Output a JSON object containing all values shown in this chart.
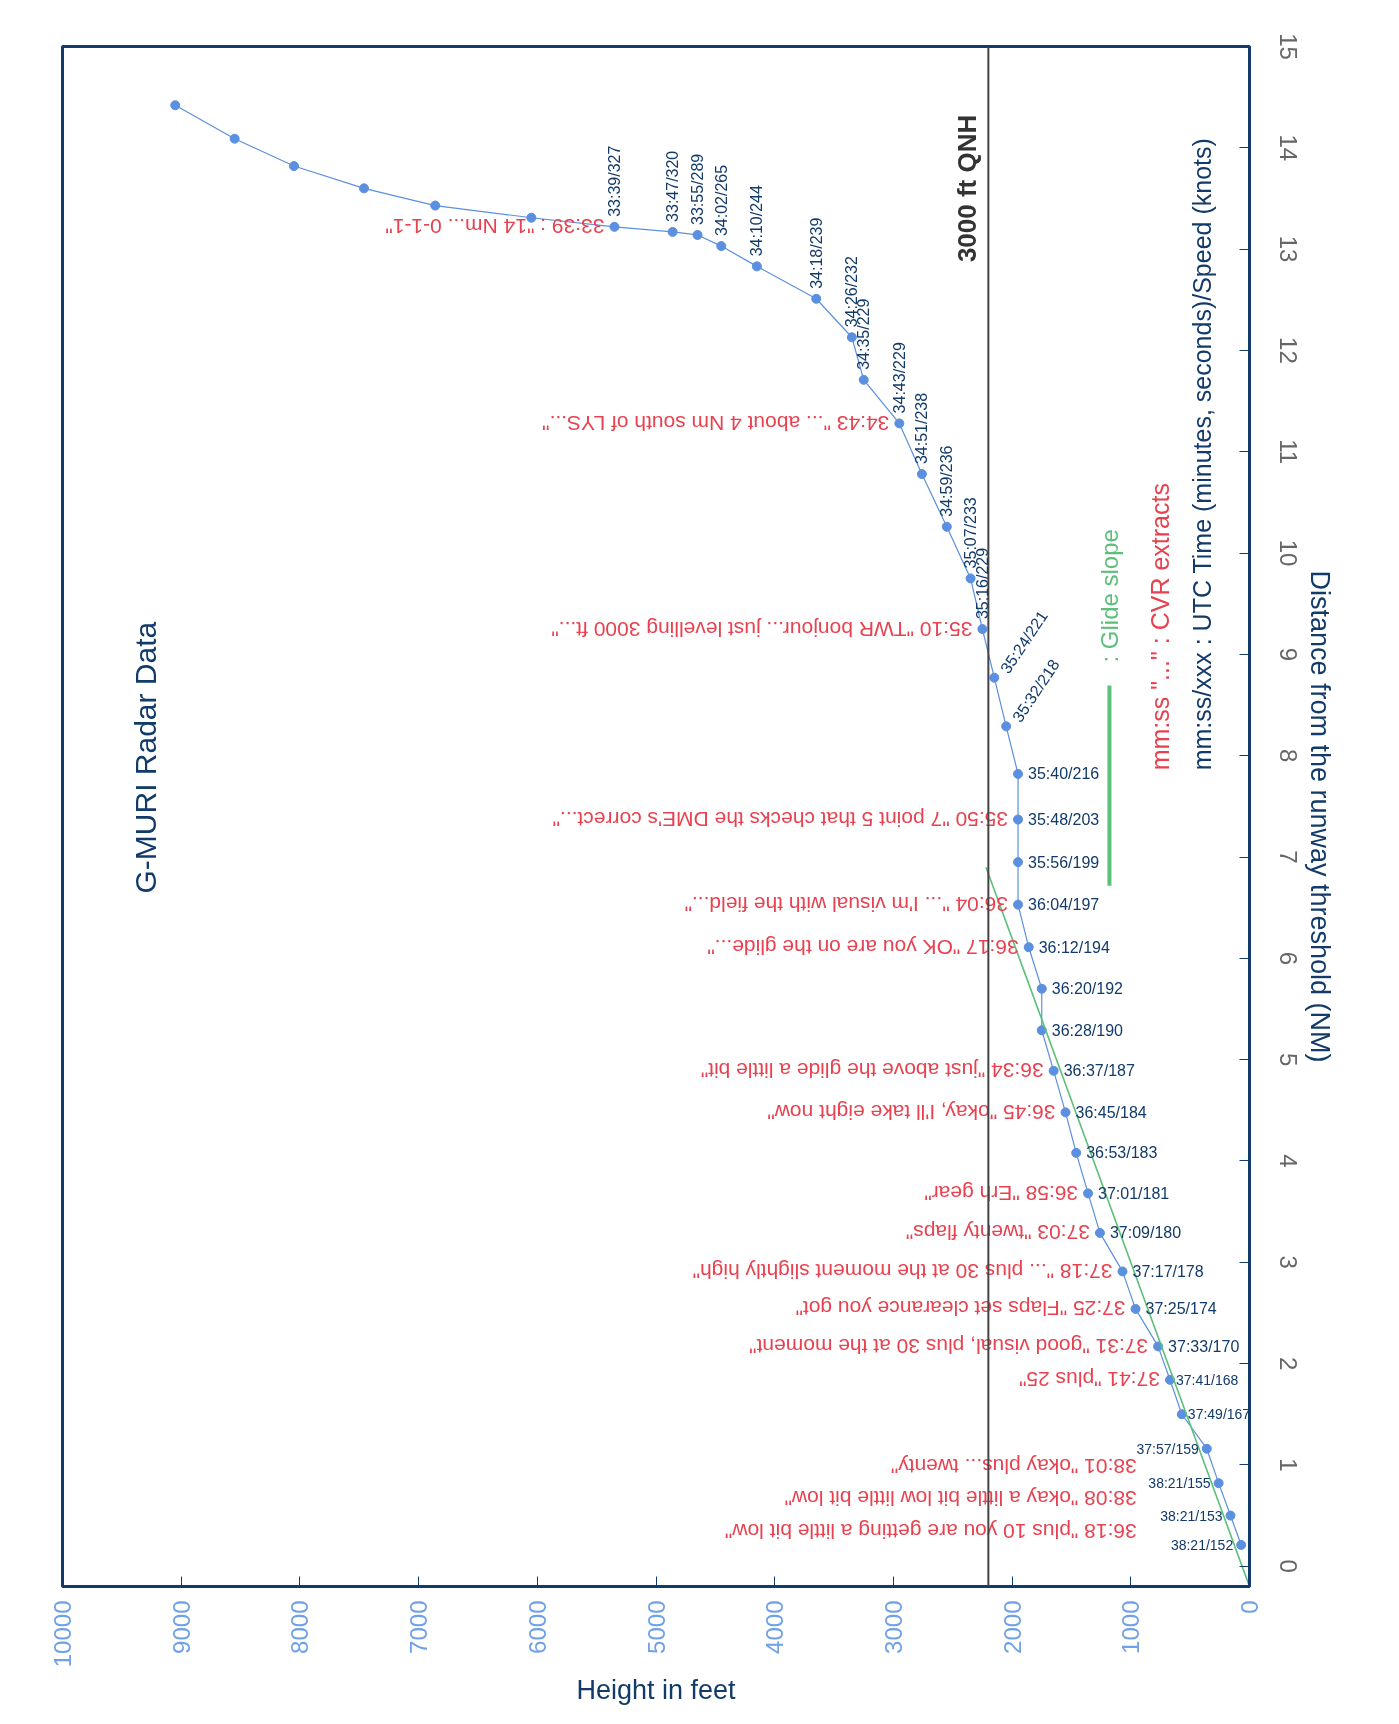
{
  "chart_data": {
    "type": "line",
    "title": "G-MURI Radar Data",
    "xlabel": "Height in feet",
    "ylabel": "Distance from the runway threshold (NM)",
    "xlim": [
      10000,
      0
    ],
    "xticks": [
      0,
      1000,
      2000,
      3000,
      4000,
      5000,
      6000,
      7000,
      8000,
      9000,
      10000
    ],
    "ylim": [
      -0.2,
      15
    ],
    "yticks": [
      0,
      1,
      2,
      3,
      4,
      5,
      6,
      7,
      8,
      9,
      10,
      11,
      12,
      13,
      14,
      15
    ],
    "grid": false,
    "marker": "circle",
    "legend": "right",
    "series": [
      {
        "color": "#5b8fe0",
        "x": [
          9050,
          8550,
          8050,
          7460,
          6860,
          6050,
          5350,
          4860,
          4650,
          4450,
          4150,
          3650,
          3350,
          3250,
          2950,
          2760,
          2550,
          2350,
          2250,
          2150,
          2050,
          1950,
          1950,
          1950,
          1950,
          1860,
          1750,
          1750,
          1650,
          1550,
          1460,
          1360,
          1260,
          1070,
          960,
          770,
          670,
          570,
          360,
          260,
          160,
          70
        ],
        "values": [
          14.42,
          14.09,
          13.82,
          13.6,
          13.43,
          13.31,
          13.22,
          13.17,
          13.14,
          13.03,
          12.83,
          12.51,
          12.13,
          11.71,
          11.28,
          10.78,
          10.26,
          9.75,
          9.25,
          8.77,
          8.29,
          7.82,
          7.37,
          6.95,
          6.53,
          6.11,
          5.7,
          5.29,
          4.89,
          4.48,
          4.08,
          3.68,
          3.29,
          2.91,
          2.54,
          2.17,
          1.84,
          1.5,
          1.16,
          0.82,
          0.5,
          0.21
        ],
        "value_labels": [
          null,
          null,
          null,
          null,
          null,
          null,
          "33:39/327",
          "33:47/320",
          "33:55/289",
          "34:02/265",
          "34:10/244",
          "34:18/239",
          "34:26/232",
          "34:35/229",
          "34:43/229",
          "34:51/238",
          "34:59/236",
          "35:07/233",
          "35:16/229",
          "35:24/221",
          "35:32/218",
          "35:40/216",
          "35:48/203",
          "35:56/199",
          "36:04/197",
          "36:12/194",
          "36:20/192",
          "36:28/190",
          "36:37/187",
          "36:45/184",
          "36:53/183",
          "37:01/181",
          "37:09/180",
          "37:17/178",
          "37:25/174",
          "37:33/170",
          "37:41/168",
          "37:49/167",
          "37:57/159",
          "38:21/155",
          "38:21/153",
          "38:21/152"
        ]
      },
      {
        "name": ": Glide slope",
        "color": "#5cbf7a",
        "marker": "none",
        "x": [
          0,
          2220
        ],
        "values": [
          -0.2,
          6.9
        ]
      }
    ],
    "ref_lines": [
      {
        "axis": "x",
        "value": 2200,
        "label": "3000 ft QNH",
        "color": "#444444"
      }
    ],
    "annotations": [
      "mm:ss/xxx : UTC Time (minutes, seconds)/Speed (knots)",
      "mm:ss \"...\" : CVR extracts",
      {
        "text": "33:39 : \"14 Nm... 0-1-1\"",
        "x": 5350,
        "y": 13.22
      },
      {
        "text": "34:43 \"... about 4 Nm south of LYS...\"",
        "x": 2950,
        "y": 11.28
      },
      {
        "text": "35:10 \"TWR bonjour... just levelling 3000 ft...\"",
        "x": 2250,
        "y": 9.25
      },
      {
        "text": "35:50 \"7 point 5 that checks the DME's correct...\"",
        "x": 1950,
        "y": 7.37
      },
      {
        "text": "36:04 \"... I'm visual with the field...\"",
        "x": 1950,
        "y": 6.53
      },
      {
        "text": "36:17 \"OK you are on the glide...\"",
        "x": 1860,
        "y": 6.11
      },
      {
        "text": "36:34 \"just above the glide a little bit\"",
        "x": 1650,
        "y": 4.89
      },
      {
        "text": "36:45 \"okay, I'll take eight now\"",
        "x": 1550,
        "y": 4.48
      },
      {
        "text": "36:58 \"Erh gear\"",
        "x": 1360,
        "y": 3.68
      },
      {
        "text": "37:03 \"twenty flaps\"",
        "x": 1260,
        "y": 3.29
      },
      {
        "text": "37:18 \"... plus 30 at the moment slightly high\"",
        "x": 1070,
        "y": 2.91
      },
      {
        "text": "37:25 \"Flaps set clearance you got\"",
        "x": 960,
        "y": 2.54
      },
      {
        "text": "37:31 \"good visual, plus 30 at the moment\"",
        "x": 770,
        "y": 2.17
      },
      {
        "text": "37:41 \"plus 25\"",
        "x": 670,
        "y": 1.84
      },
      "38:01 \"okay plus... twenty\"",
      "38:08 \"okay a little bit low little bit low\"",
      "36:18 \"plus 10 you are getting a little bit low\""
    ]
  }
}
